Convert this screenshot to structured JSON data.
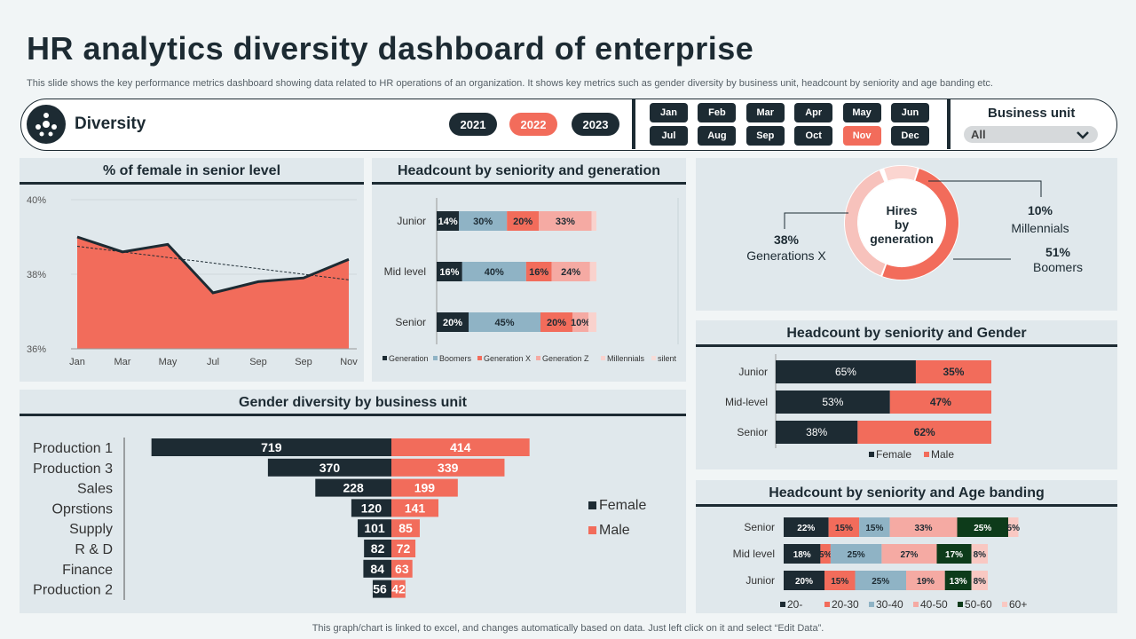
{
  "header": {
    "title": "HR analytics diversity dashboard of enterprise",
    "subtitle": "This slide shows the key performance metrics dashboard showing data related to HR operations of an organization. It shows key metrics such as gender diversity by business unit, headcount by seniority and age banding etc."
  },
  "controls": {
    "section_label": "Diversity",
    "years": [
      "2021",
      "2022",
      "2023"
    ],
    "active_year": "2022",
    "months": [
      "Jan",
      "Feb",
      "Mar",
      "Apr",
      "May",
      "Jun",
      "Jul",
      "Aug",
      "Sep",
      "Oct",
      "Nov",
      "Dec"
    ],
    "active_month": "Nov",
    "business_unit_label": "Business unit",
    "business_unit_value": "All"
  },
  "colors": {
    "navy": "#1d2b33",
    "coral": "#f26c5b",
    "blue": "#8fb3c5",
    "pink": "#f5aaa3",
    "lightpink": "#f9d2cd",
    "green": "#0d3b1a",
    "panel": "#e0e8ec"
  },
  "chart_data": [
    {
      "id": "female_senior",
      "type": "area",
      "title": "% of female in senior level",
      "categories": [
        "Jan",
        "Mar",
        "May",
        "Jul",
        "Sep",
        "Sep",
        "Nov"
      ],
      "values": [
        39.0,
        38.6,
        38.8,
        37.5,
        37.8,
        37.9,
        38.4
      ],
      "trendline": [
        38.75,
        37.85
      ],
      "yticks": [
        "40%",
        "38%",
        "36%"
      ],
      "ylim": [
        36,
        40
      ]
    },
    {
      "id": "seniority_generation",
      "type": "bar",
      "stacked": true,
      "title": "Headcount by seniority  and generation",
      "categories": [
        "Junior",
        "Mid level",
        "Senior"
      ],
      "series": [
        {
          "name": "Generation",
          "values": [
            14,
            16,
            20
          ],
          "labels": [
            "14%",
            "16%",
            "20%"
          ]
        },
        {
          "name": "Boomers",
          "values": [
            30,
            40,
            45
          ],
          "labels": [
            "30%",
            "40%",
            "45%"
          ]
        },
        {
          "name": "Generation X",
          "values": [
            20,
            16,
            20
          ],
          "labels": [
            "20%",
            "16%",
            "20%"
          ]
        },
        {
          "name": "Generation  Z",
          "values": [
            33,
            24,
            10
          ],
          "labels": [
            "33%",
            "24%",
            "10%"
          ]
        },
        {
          "name": "Millennials",
          "values": [
            3,
            4,
            5
          ],
          "labels": [
            "",
            "",
            ""
          ]
        },
        {
          "name": "silent",
          "values": [
            0,
            0,
            0
          ],
          "labels": [
            "",
            "",
            ""
          ]
        }
      ]
    },
    {
      "id": "hires_generation",
      "type": "pie",
      "center_label": "Hires by generation",
      "slices": [
        {
          "name": "Millennials",
          "value": 10,
          "label": "10%"
        },
        {
          "name": "Boomers",
          "value": 51,
          "label": "51%"
        },
        {
          "name": "Generations X",
          "value": 38,
          "label": "38%"
        }
      ]
    },
    {
      "id": "seniority_gender",
      "type": "bar",
      "stacked": true,
      "orientation": "horizontal",
      "title": "Headcount by seniority  and Gender",
      "categories": [
        "Junior",
        "Mid-level",
        "Senior"
      ],
      "series": [
        {
          "name": "Female",
          "values": [
            65,
            53,
            38
          ],
          "labels": [
            "65%",
            "53%",
            "38%"
          ]
        },
        {
          "name": "Male",
          "values": [
            35,
            47,
            62
          ],
          "labels": [
            "35%",
            "47%",
            "62%"
          ]
        }
      ]
    },
    {
      "id": "seniority_age",
      "type": "bar",
      "stacked": true,
      "orientation": "horizontal",
      "title": "Headcount by seniority  and Age banding",
      "categories": [
        "Senior",
        "Mid level",
        "Junior"
      ],
      "series": [
        {
          "name": "20-",
          "values": [
            22,
            18,
            20
          ],
          "labels": [
            "22%",
            "18%",
            "20%"
          ]
        },
        {
          "name": "20-30",
          "values": [
            15,
            5,
            15
          ],
          "labels": [
            "15%",
            "5%",
            "15%"
          ]
        },
        {
          "name": "30-40",
          "values": [
            15,
            25,
            25
          ],
          "labels": [
            "15%",
            "25%",
            "25%"
          ]
        },
        {
          "name": "40-50",
          "values": [
            33,
            27,
            19
          ],
          "labels": [
            "33%",
            "27%",
            "19%"
          ]
        },
        {
          "name": "50-60",
          "values": [
            25,
            17,
            13
          ],
          "labels": [
            "25%",
            "17%",
            "13%"
          ]
        },
        {
          "name": "60+",
          "values": [
            5,
            8,
            8
          ],
          "labels": [
            "5%",
            "8%",
            "8%"
          ]
        }
      ]
    },
    {
      "id": "gender_business_unit",
      "type": "bar",
      "orientation": "horizontal",
      "diverging": true,
      "title": "Gender diversity by business unit",
      "categories": [
        "Production 1",
        "Production 3",
        "Sales",
        "Oprstions",
        "Supply",
        "R & D",
        "Finance",
        "Production 2"
      ],
      "series": [
        {
          "name": "Female",
          "values": [
            719,
            370,
            228,
            120,
            101,
            82,
            84,
            56
          ]
        },
        {
          "name": "Male",
          "values": [
            414,
            339,
            199,
            141,
            85,
            72,
            63,
            42
          ]
        }
      ]
    }
  ],
  "footer": "This graph/chart is linked to excel,  and changes automatically based on data. Just left click on it and select “Edit Data”."
}
